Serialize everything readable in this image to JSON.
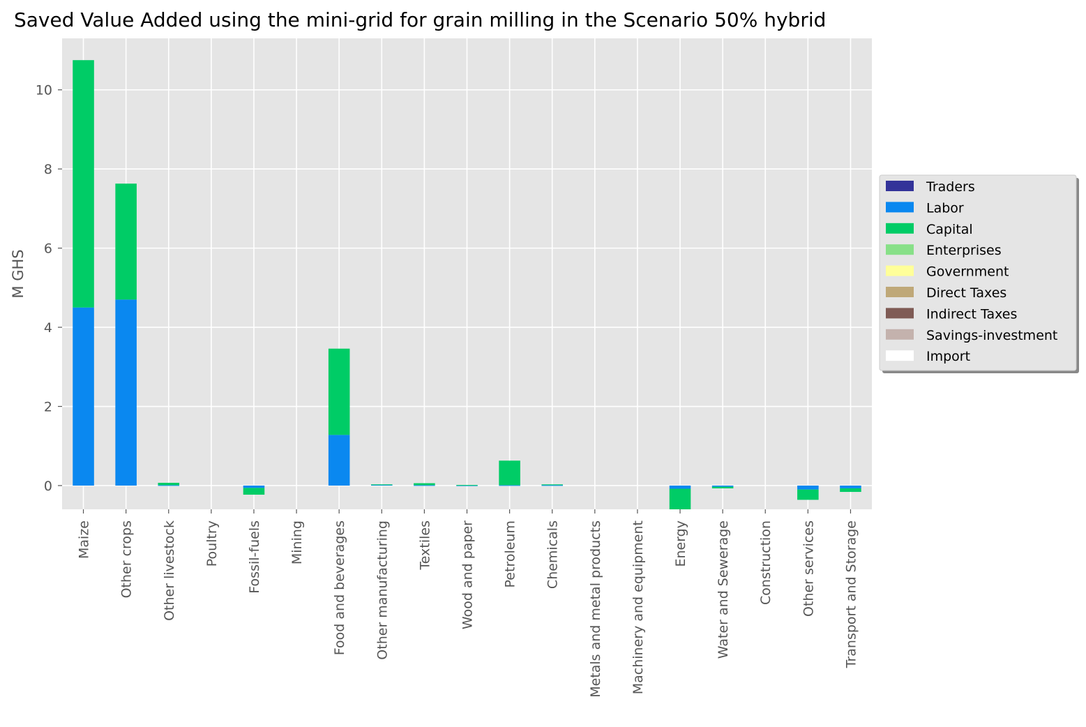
{
  "chart_data": {
    "type": "bar",
    "stacked": true,
    "title": "Saved Value Added using the mini-grid for grain milling in the Scenario 50% hybrid",
    "xlabel": "",
    "ylabel": "M GHS",
    "ylim": [
      -0.6,
      11.3
    ],
    "yticks": [
      0,
      2,
      4,
      6,
      8,
      10
    ],
    "grid": true,
    "legend_position": "right-outside",
    "categories": [
      "Maize",
      "Other crops",
      "Other livestock",
      "Poultry",
      "Fossil-fuels",
      "Mining",
      "Food and beverages",
      "Other manufacturing",
      "Textiles",
      "Wood and paper",
      "Petroleum",
      "Chemicals",
      "Metals and metal products",
      "Machinery and equipment",
      "Energy",
      "Water and Sewerage",
      "Construction",
      "Other services",
      "Transport and Storage"
    ],
    "series": [
      {
        "name": "Traders",
        "color": "#333399",
        "values": [
          0,
          0,
          0,
          0,
          0,
          0,
          0,
          0,
          0,
          0,
          0,
          0,
          0,
          0,
          0,
          0,
          0,
          0,
          0
        ]
      },
      {
        "name": "Labor",
        "color": "#0a88f0",
        "values": [
          4.5,
          4.7,
          0.01,
          0,
          -0.06,
          0,
          1.28,
          0.02,
          0.01,
          0.005,
          0.01,
          0.01,
          0,
          0,
          -0.08,
          -0.03,
          0,
          -0.1,
          -0.07
        ]
      },
      {
        "name": "Capital",
        "color": "#00cc66",
        "values": [
          6.25,
          2.93,
          0.06,
          0,
          -0.17,
          0,
          2.18,
          0.01,
          0.05,
          0.01,
          0.62,
          0.02,
          0,
          0,
          -0.52,
          -0.04,
          0,
          -0.26,
          -0.09
        ]
      },
      {
        "name": "Enterprises",
        "color": "#88e088",
        "values": [
          0,
          0,
          0,
          0,
          0,
          0,
          0,
          0,
          0,
          0,
          0,
          0,
          0,
          0,
          0,
          0,
          0,
          0,
          0
        ]
      },
      {
        "name": "Government",
        "color": "#ffff99",
        "values": [
          0,
          0,
          0,
          0,
          0,
          0,
          0,
          0,
          0,
          0,
          0,
          0,
          0,
          0,
          0,
          0,
          0,
          0,
          0
        ]
      },
      {
        "name": "Direct Taxes",
        "color": "#bfa878",
        "values": [
          0,
          0,
          0,
          0,
          0,
          0,
          0,
          0,
          0,
          0,
          0,
          0,
          0,
          0,
          0,
          0,
          0,
          0,
          0
        ]
      },
      {
        "name": "Indirect Taxes",
        "color": "#7f5b55",
        "values": [
          0,
          0,
          0,
          0,
          0,
          0,
          0,
          0,
          0,
          0,
          0,
          0,
          0,
          0,
          0,
          0,
          0,
          0,
          0
        ]
      },
      {
        "name": "Savings-investment",
        "color": "#c4b2ad",
        "values": [
          0,
          0,
          0,
          0,
          0,
          0,
          0,
          0,
          0,
          0,
          0,
          0,
          0,
          0,
          0,
          0,
          0,
          0,
          0
        ]
      },
      {
        "name": "Import",
        "color": "#ffffff",
        "values": [
          0,
          0,
          0,
          0,
          0,
          0,
          0,
          0,
          0,
          0,
          0,
          0,
          0,
          0,
          0,
          0,
          0,
          0,
          0
        ]
      }
    ]
  }
}
